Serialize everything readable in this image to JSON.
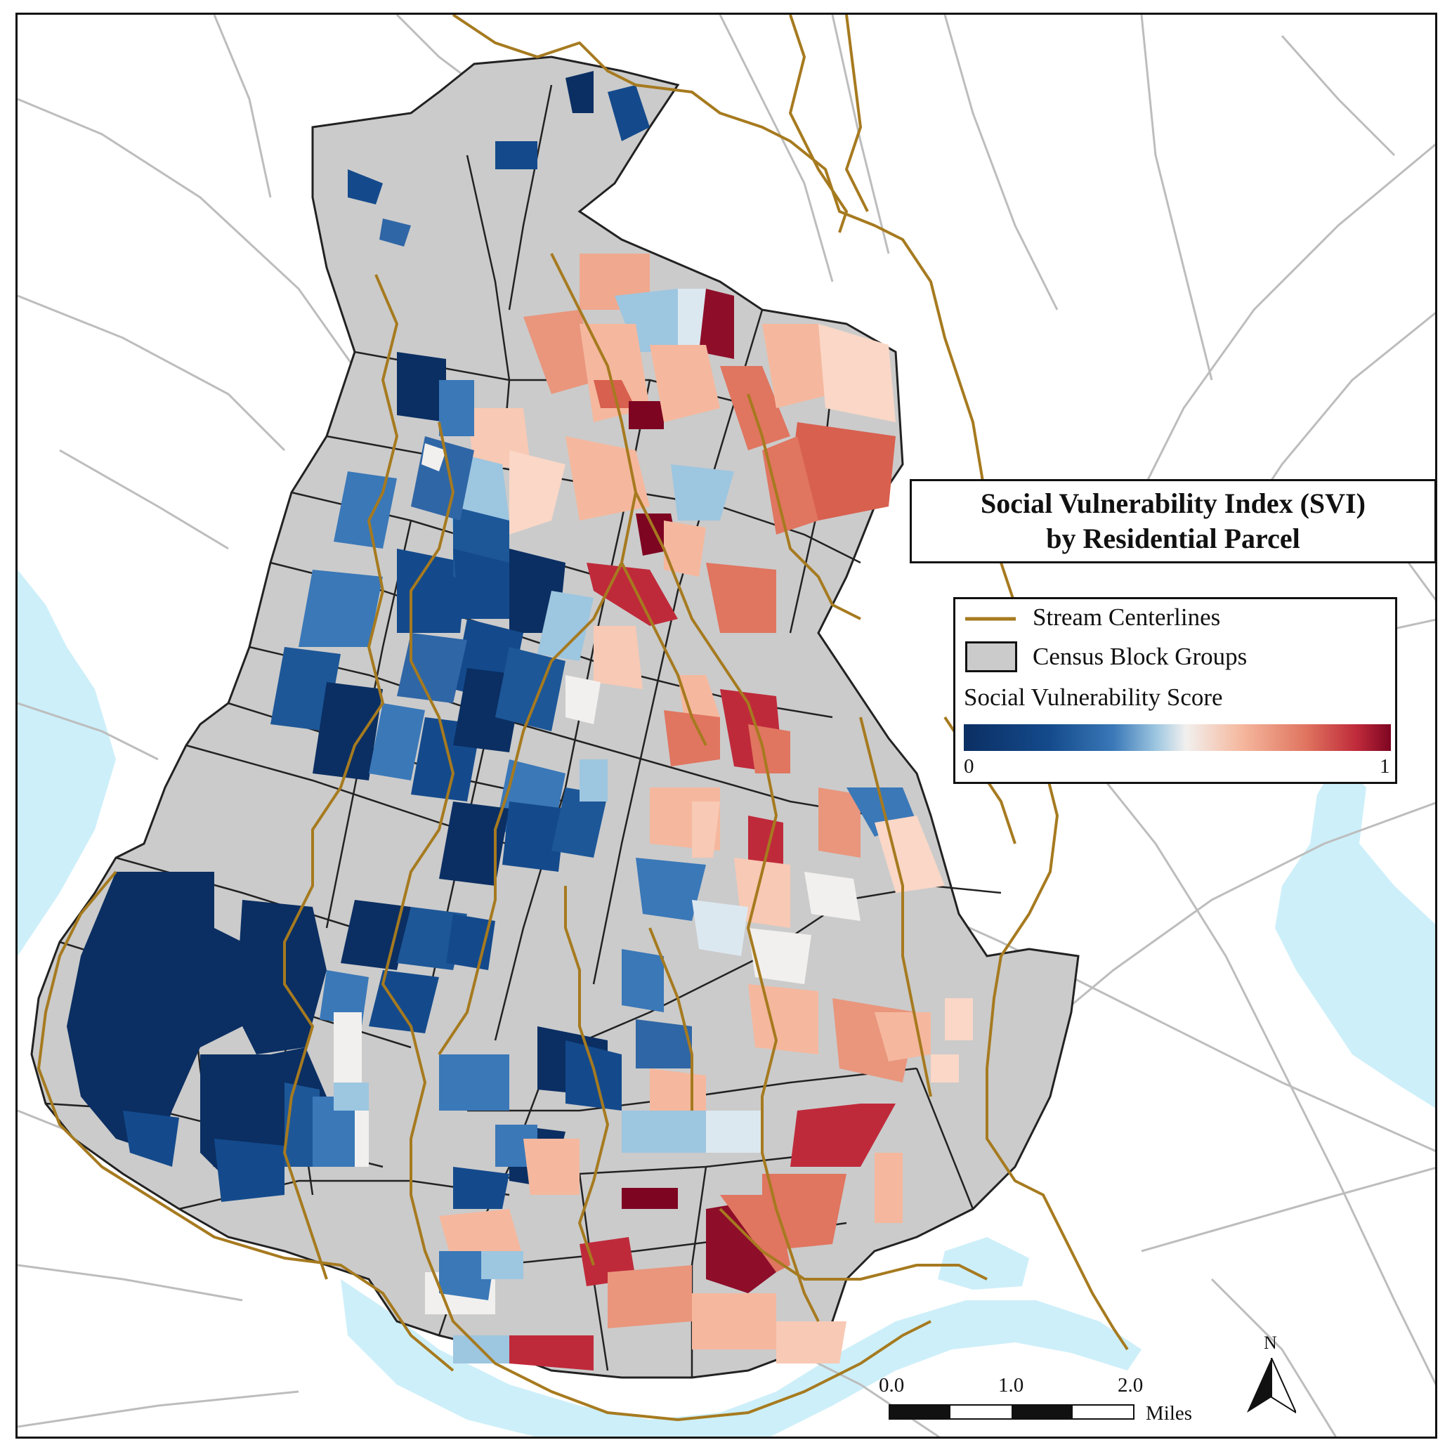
{
  "title": {
    "line1": "Social Vulnerability Index (SVI)",
    "line2": "by Residential Parcel"
  },
  "legend": {
    "stream_label": "Stream Centerlines",
    "block_group_label": "Census Block Groups",
    "score_label": "Social Vulnerability Score",
    "score_min": "0",
    "score_max": "1"
  },
  "scale_bar": {
    "ticks": [
      "0.0",
      "1.0",
      "2.0"
    ],
    "unit": "Miles"
  },
  "north_arrow": {
    "label": "N"
  },
  "colors": {
    "stream": "#A67A1F",
    "block_group_fill": "#CBCBCB",
    "road": "#B8B8B8",
    "water": "#CDEFF9",
    "svi_0": "#0B2F63",
    "svi_25": "#3A78B8",
    "svi_50": "#F2F0EE",
    "svi_75": "#E9967D",
    "svi_1": "#7E0522"
  }
}
